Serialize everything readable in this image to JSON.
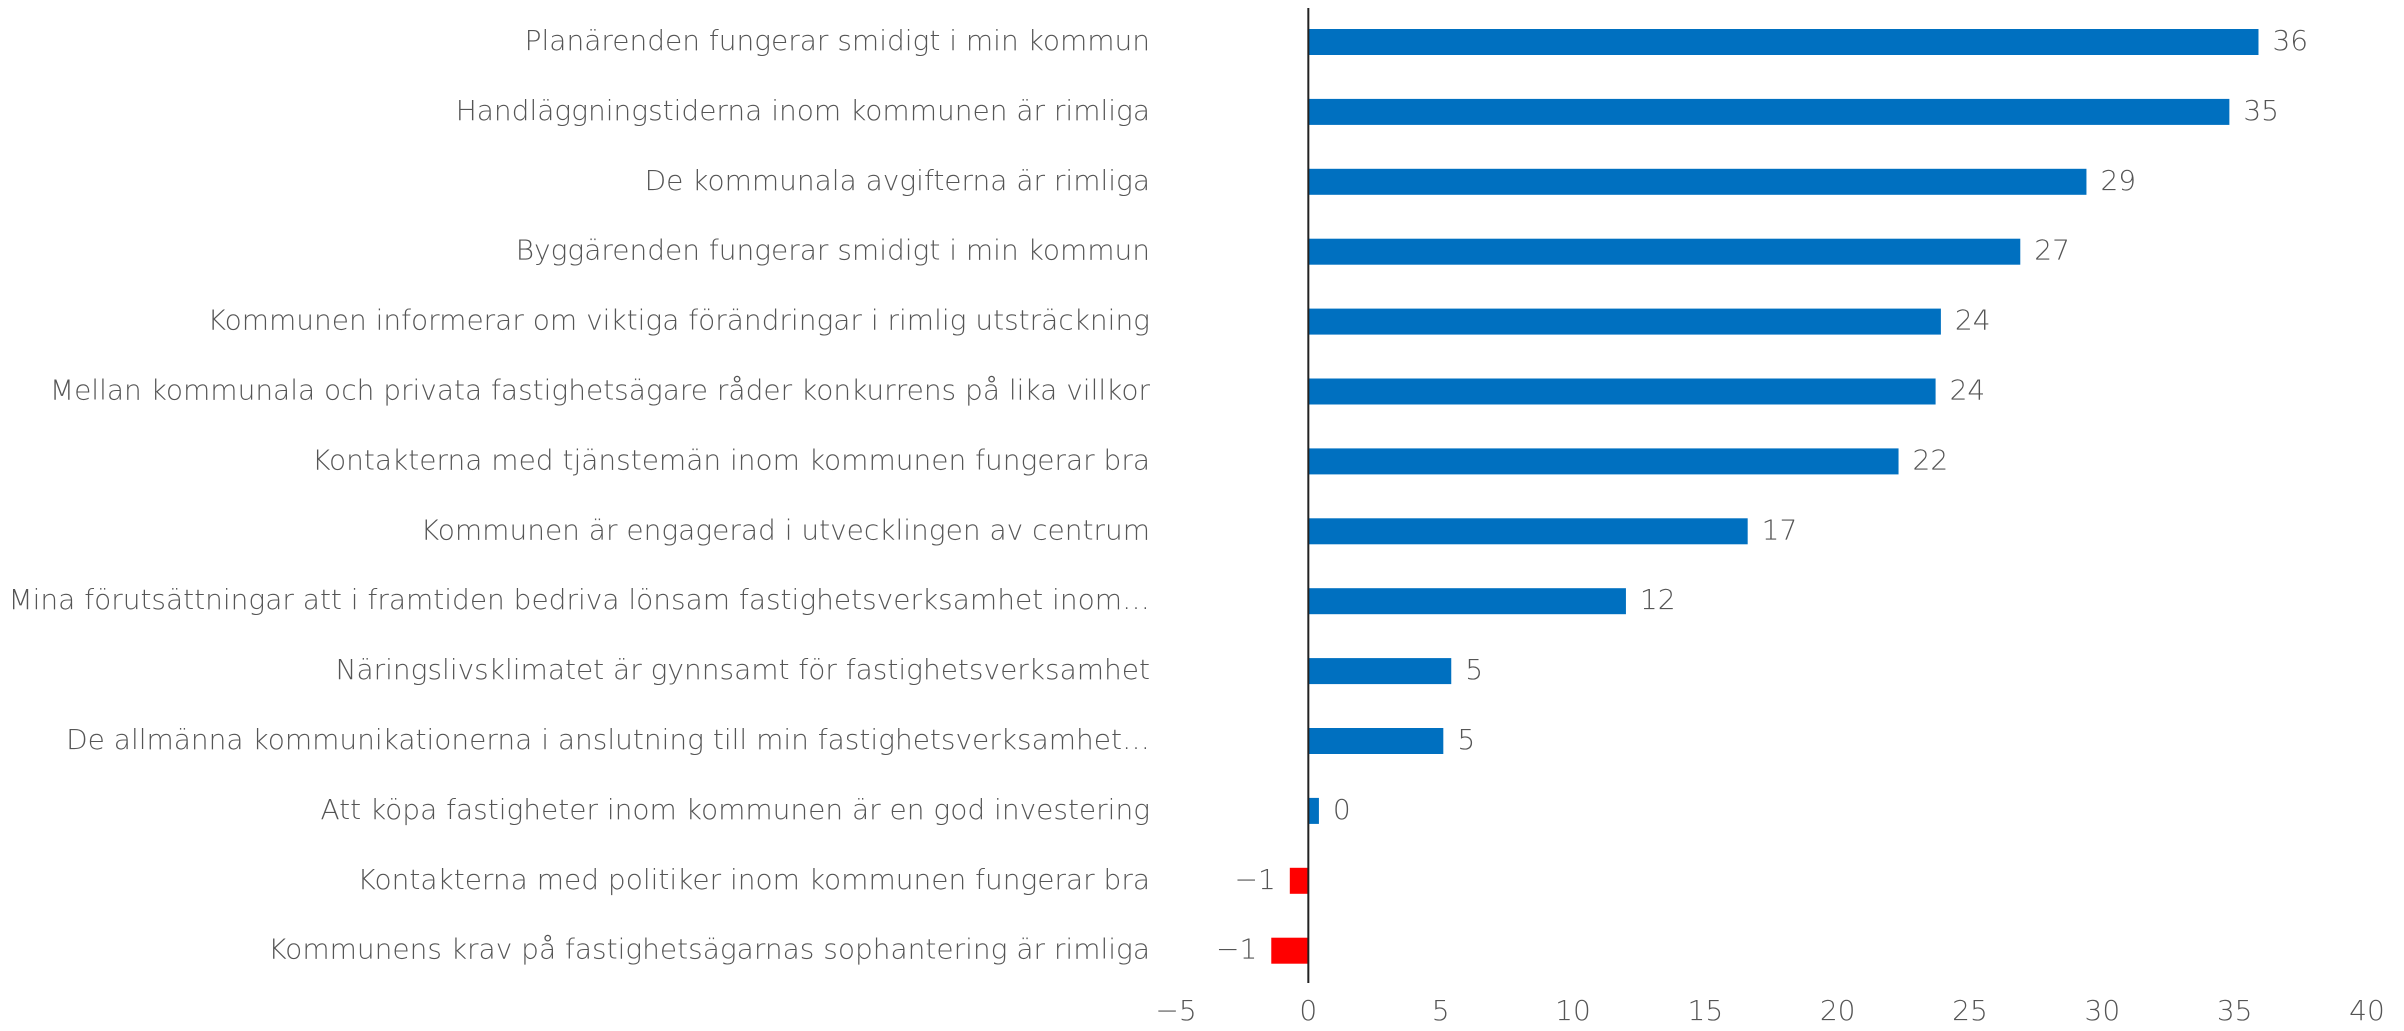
{
  "chart_data": {
    "type": "barh",
    "categories": [
      "Planärenden fungerar smidigt i min kommun",
      "Handläggningstiderna inom kommunen är rimliga",
      "De kommunala avgifterna är rimliga",
      "Byggärenden fungerar smidigt i min kommun",
      "Kommunen informerar om viktiga förändringar i rimlig utsträckning",
      "Mellan kommunala och privata fastighetsägare råder konkurrens på lika villkor",
      "Kontakterna med tjänstemän inom kommunen fungerar bra",
      "Kommunen är engagerad i utvecklingen av centrum",
      "Mina förutsättningar att i framtiden bedriva lönsam fastighetsverksamhet inom…",
      "Näringslivsklimatet är gynnsamt för fastighetsverksamhet",
      "De allmänna kommunikationerna i anslutning till min fastighetsverksamhet…",
      "Att köpa fastigheter inom kommunen är en god investering",
      "Kontakterna med politiker inom kommunen fungerar bra",
      "Kommunens krav på fastighetsägarnas sophantering är rimliga"
    ],
    "values": [
      35.9,
      34.8,
      29.4,
      26.9,
      23.9,
      23.7,
      22.3,
      16.6,
      12.0,
      5.4,
      5.1,
      0.4,
      -0.7,
      -1.4
    ],
    "value_labels": [
      "36",
      "35",
      "29",
      "27",
      "24",
      "24",
      "22",
      "17",
      "12",
      "5",
      "5",
      "0",
      "−1",
      "−1"
    ],
    "color": "#0070c0",
    "negative_color": "#ff0000",
    "xlim": [
      -5,
      40
    ],
    "xticks": [
      {
        "value": -5,
        "label": "−5"
      },
      0,
      5,
      10,
      15,
      20,
      25,
      30,
      35,
      40
    ]
  }
}
